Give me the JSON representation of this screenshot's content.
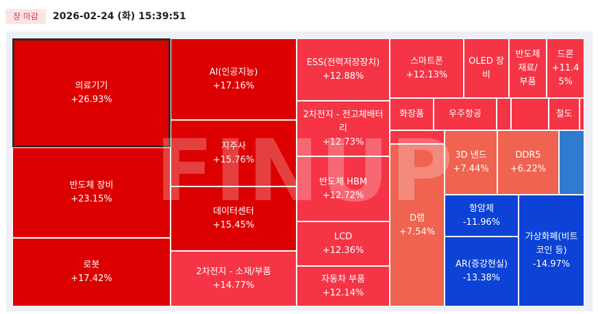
{
  "header": {
    "status_badge": "장 마감",
    "timestamp": "2026-02-24 (화) 15:39:51"
  },
  "watermark": "FINUP",
  "colors": {
    "strong_up": "#dc0000",
    "up": "#f53446",
    "mild_up": "#ef6350",
    "strong_down": "#0c42d6",
    "mild_down": "#2f7bd0",
    "badge_bg": "#fbe4e6",
    "badge_text": "#e8343f"
  },
  "chart_data": {
    "type": "heatmap",
    "subtype": "treemap",
    "unit": "%",
    "tiles": [
      {
        "name": "의료기기",
        "label_lines": [
          "의료기기"
        ],
        "value_text": "+26.93%",
        "change": 26.93,
        "color": "#dc0000",
        "selected": true
      },
      {
        "name": "반도체 장비",
        "label_lines": [
          "반도체 장비"
        ],
        "value_text": "+23.15%",
        "change": 23.15,
        "color": "#dc0000"
      },
      {
        "name": "로봇",
        "label_lines": [
          "로봇"
        ],
        "value_text": "+17.42%",
        "change": 17.42,
        "color": "#dc0000"
      },
      {
        "name": "AI(인공지능)",
        "label_lines": [
          "AI(인공지능)"
        ],
        "value_text": "+17.16%",
        "change": 17.16,
        "color": "#dc0000"
      },
      {
        "name": "지주사",
        "label_lines": [
          "지주사"
        ],
        "value_text": "+15.76%",
        "change": 15.76,
        "color": "#dc0000"
      },
      {
        "name": "데이터센터",
        "label_lines": [
          "데이터센터"
        ],
        "value_text": "+15.45%",
        "change": 15.45,
        "color": "#dc0000"
      },
      {
        "name": "2차전지 - 소재/부품",
        "label_lines": [
          "2차전지 - 소재/부품"
        ],
        "value_text": "+14.77%",
        "change": 14.77,
        "color": "#f53446"
      },
      {
        "name": "ESS(전력저장장치)",
        "label_lines": [
          "ESS(전력저장장치)"
        ],
        "value_text": "+12.88%",
        "change": 12.88,
        "color": "#f53446"
      },
      {
        "name": "2차전지 - 전고체배터리",
        "label_lines": [
          "2차전지 - 전고체배터",
          "리"
        ],
        "value_text": "+12.73%",
        "change": 12.73,
        "color": "#f53446"
      },
      {
        "name": "반도체 HBM",
        "label_lines": [
          "반도체 HBM"
        ],
        "value_text": "+12.72%",
        "change": 12.72,
        "color": "#f53446"
      },
      {
        "name": "LCD",
        "label_lines": [
          "LCD"
        ],
        "value_text": "+12.36%",
        "change": 12.36,
        "color": "#f53446"
      },
      {
        "name": "자동차 부품",
        "label_lines": [
          "자동차 부품"
        ],
        "value_text": "+12.14%",
        "change": 12.14,
        "color": "#f53446"
      },
      {
        "name": "스마트폰",
        "label_lines": [
          "스마트폰"
        ],
        "value_text": "+12.13%",
        "change": 12.13,
        "color": "#f53446"
      },
      {
        "name": "OLED 장비",
        "label_lines": [
          "OLED 장",
          "비"
        ],
        "value_text": "",
        "change": null,
        "color": "#f53446"
      },
      {
        "name": "반도체 재료/부품",
        "label_lines": [
          "반도체",
          "재료/",
          "부품"
        ],
        "value_text": "",
        "change": null,
        "color": "#f53446"
      },
      {
        "name": "드론",
        "label_lines": [
          "드론"
        ],
        "value_text": "+11.45%",
        "value_lines": [
          "+11.4",
          "5%"
        ],
        "change": 11.45,
        "color": "#f53446"
      },
      {
        "name": "화장품",
        "label_lines": [
          "화장품"
        ],
        "value_text": "",
        "change": null,
        "color": "#f53446"
      },
      {
        "name": "우주항공",
        "label_lines": [
          "우주항공"
        ],
        "value_text": "",
        "change": null,
        "color": "#f53446"
      },
      {
        "name": "",
        "label_lines": [],
        "value_text": "",
        "change": null,
        "color": "#f53446"
      },
      {
        "name": "",
        "label_lines": [],
        "value_text": "",
        "change": null,
        "color": "#f53446"
      },
      {
        "name": "철도",
        "label_lines": [
          "철도"
        ],
        "value_text": "",
        "change": null,
        "color": "#f53446"
      },
      {
        "name": "",
        "label_lines": [],
        "value_text": "",
        "change": null,
        "color": "#f53446"
      },
      {
        "name": "",
        "label_lines": [],
        "value_text": "",
        "change": null,
        "color": "#f53446"
      },
      {
        "name": "D램",
        "label_lines": [
          "D램"
        ],
        "value_text": "+7.54%",
        "change": 7.54,
        "color": "#ef6350"
      },
      {
        "name": "3D 낸드",
        "label_lines": [
          "3D 낸드"
        ],
        "value_text": "+7.44%",
        "change": 7.44,
        "color": "#ef6350"
      },
      {
        "name": "DDR5",
        "label_lines": [
          "DDR5"
        ],
        "value_text": "+6.22%",
        "change": 6.22,
        "color": "#ef6350"
      },
      {
        "name": "",
        "label_lines": [],
        "value_text": "",
        "change": null,
        "color": "#2f7bd0"
      },
      {
        "name": "항암제",
        "label_lines": [
          "항암제"
        ],
        "value_text": "-11.96%",
        "change": -11.96,
        "color": "#0c42d6"
      },
      {
        "name": "AR(증강현실)",
        "label_lines": [
          "AR(증강현실)"
        ],
        "value_text": "-13.38%",
        "change": -13.38,
        "color": "#0c42d6"
      },
      {
        "name": "가상화폐(비트코인 등)",
        "label_lines": [
          "가상화폐(비트",
          "코인 등)"
        ],
        "value_text": "-14.97%",
        "change": -14.97,
        "color": "#0c42d6"
      }
    ]
  }
}
